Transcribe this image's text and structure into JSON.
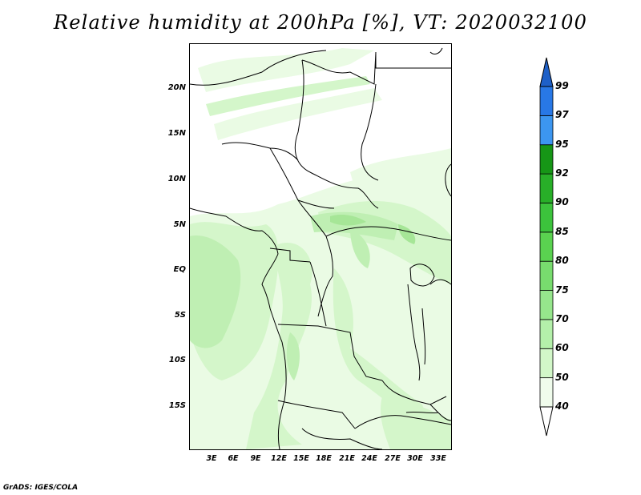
{
  "title": "Relative humidity at 200hPa [%], VT: 2020032100",
  "footer": "GrADS: IGES/COLA",
  "map": {
    "lat_labels": [
      "20N",
      "15N",
      "10N",
      "5N",
      "EQ",
      "5S",
      "10S",
      "15S"
    ],
    "lon_labels": [
      "3E",
      "6E",
      "9E",
      "12E",
      "15E",
      "18E",
      "21E",
      "24E",
      "27E",
      "30E",
      "33E"
    ],
    "variable": "relative humidity",
    "level": "200hPa"
  },
  "colorbar": {
    "labels": [
      "40",
      "50",
      "60",
      "70",
      "75",
      "80",
      "85",
      "90",
      "92",
      "95",
      "97",
      "99"
    ],
    "colors": [
      "#f0fcec",
      "#d2f7c8",
      "#b4f0aa",
      "#96e68c",
      "#78dc6e",
      "#5ad250",
      "#3cc33c",
      "#28af28",
      "#169616",
      "#3c96f0",
      "#2878e6",
      "#1e60c8"
    ]
  }
}
